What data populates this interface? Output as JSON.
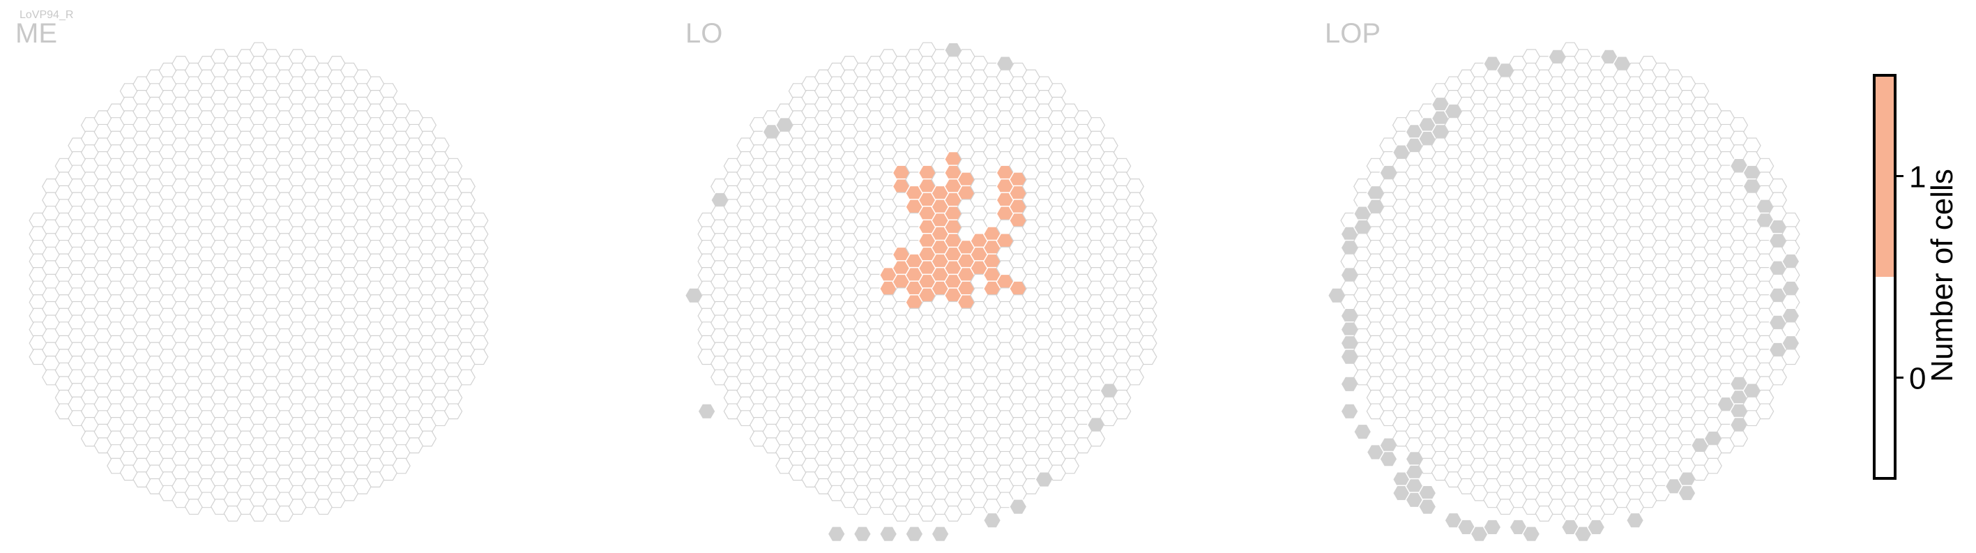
{
  "figure": {
    "cell_type_label": "LoVP94_R"
  },
  "chart_data": {
    "type": "heatmap",
    "cell_type": "LoVP94_R",
    "panels": [
      {
        "name": "ME",
        "hex_columns": 35,
        "cells_with_count": [],
        "cells_outside_neuropil": []
      },
      {
        "name": "LO",
        "hex_columns": 35,
        "cells_with_count": [
          {
            "col": 15,
            "row": 17
          },
          {
            "col": 15,
            "row": 16
          },
          {
            "col": 16,
            "row": 17
          },
          {
            "col": 16,
            "row": 16
          },
          {
            "col": 16,
            "row": 15
          },
          {
            "col": 16,
            "row": 10
          },
          {
            "col": 16,
            "row": 9
          },
          {
            "col": 17,
            "row": 18
          },
          {
            "col": 17,
            "row": 17
          },
          {
            "col": 17,
            "row": 16
          },
          {
            "col": 17,
            "row": 15
          },
          {
            "col": 17,
            "row": 11
          },
          {
            "col": 17,
            "row": 10
          },
          {
            "col": 18,
            "row": 18
          },
          {
            "col": 18,
            "row": 17
          },
          {
            "col": 18,
            "row": 16
          },
          {
            "col": 18,
            "row": 15
          },
          {
            "col": 18,
            "row": 14
          },
          {
            "col": 18,
            "row": 13
          },
          {
            "col": 18,
            "row": 12
          },
          {
            "col": 18,
            "row": 11
          },
          {
            "col": 18,
            "row": 10
          },
          {
            "col": 18,
            "row": 9
          },
          {
            "col": 19,
            "row": 17
          },
          {
            "col": 19,
            "row": 16
          },
          {
            "col": 19,
            "row": 15
          },
          {
            "col": 19,
            "row": 14
          },
          {
            "col": 19,
            "row": 13
          },
          {
            "col": 19,
            "row": 12
          },
          {
            "col": 19,
            "row": 11
          },
          {
            "col": 19,
            "row": 10
          },
          {
            "col": 20,
            "row": 18
          },
          {
            "col": 20,
            "row": 17
          },
          {
            "col": 20,
            "row": 16
          },
          {
            "col": 20,
            "row": 15
          },
          {
            "col": 20,
            "row": 14
          },
          {
            "col": 20,
            "row": 13
          },
          {
            "col": 20,
            "row": 12
          },
          {
            "col": 20,
            "row": 11
          },
          {
            "col": 20,
            "row": 10
          },
          {
            "col": 20,
            "row": 9
          },
          {
            "col": 20,
            "row": 8
          },
          {
            "col": 21,
            "row": 18
          },
          {
            "col": 21,
            "row": 17
          },
          {
            "col": 21,
            "row": 16
          },
          {
            "col": 21,
            "row": 15
          },
          {
            "col": 21,
            "row": 14
          },
          {
            "col": 21,
            "row": 10
          },
          {
            "col": 21,
            "row": 9
          },
          {
            "col": 22,
            "row": 16
          },
          {
            "col": 22,
            "row": 15
          },
          {
            "col": 22,
            "row": 14
          },
          {
            "col": 23,
            "row": 17
          },
          {
            "col": 23,
            "row": 16
          },
          {
            "col": 23,
            "row": 15
          },
          {
            "col": 23,
            "row": 14
          },
          {
            "col": 23,
            "row": 13
          },
          {
            "col": 24,
            "row": 17
          },
          {
            "col": 24,
            "row": 14
          },
          {
            "col": 24,
            "row": 12
          },
          {
            "col": 24,
            "row": 11
          },
          {
            "col": 24,
            "row": 10
          },
          {
            "col": 24,
            "row": 9
          },
          {
            "col": 25,
            "row": 17
          },
          {
            "col": 25,
            "row": 12
          },
          {
            "col": 25,
            "row": 11
          },
          {
            "col": 25,
            "row": 10
          },
          {
            "col": 25,
            "row": 9
          }
        ],
        "cells_outside_neuropil": [
          {
            "col": 0,
            "row": 18
          },
          {
            "col": 1,
            "row": 26
          },
          {
            "col": 2,
            "row": 11
          },
          {
            "col": 6,
            "row": 6
          },
          {
            "col": 7,
            "row": 5
          },
          {
            "col": 11,
            "row": 35
          },
          {
            "col": 13,
            "row": 35
          },
          {
            "col": 15,
            "row": 35
          },
          {
            "col": 17,
            "row": 35
          },
          {
            "col": 19,
            "row": 35
          },
          {
            "col": 20,
            "row": 0
          },
          {
            "col": 23,
            "row": 34
          },
          {
            "col": 24,
            "row": 1
          },
          {
            "col": 25,
            "row": 33
          },
          {
            "col": 27,
            "row": 31
          },
          {
            "col": 31,
            "row": 27
          },
          {
            "col": 32,
            "row": 25
          }
        ]
      },
      {
        "name": "LOP",
        "hex_columns": 35,
        "cells_with_count": [],
        "cells_outside_neuropil": [
          {
            "col": 0,
            "row": 18
          },
          {
            "col": 1,
            "row": 13
          },
          {
            "col": 1,
            "row": 14
          },
          {
            "col": 1,
            "row": 16
          },
          {
            "col": 1,
            "row": 19
          },
          {
            "col": 1,
            "row": 20
          },
          {
            "col": 1,
            "row": 21
          },
          {
            "col": 1,
            "row": 22
          },
          {
            "col": 1,
            "row": 24
          },
          {
            "col": 1,
            "row": 26
          },
          {
            "col": 2,
            "row": 12
          },
          {
            "col": 2,
            "row": 13
          },
          {
            "col": 2,
            "row": 28
          },
          {
            "col": 3,
            "row": 10
          },
          {
            "col": 3,
            "row": 11
          },
          {
            "col": 3,
            "row": 29
          },
          {
            "col": 4,
            "row": 9
          },
          {
            "col": 4,
            "row": 29
          },
          {
            "col": 4,
            "row": 30
          },
          {
            "col": 5,
            "row": 7
          },
          {
            "col": 5,
            "row": 31
          },
          {
            "col": 5,
            "row": 32
          },
          {
            "col": 6,
            "row": 6
          },
          {
            "col": 6,
            "row": 7
          },
          {
            "col": 6,
            "row": 30
          },
          {
            "col": 6,
            "row": 31
          },
          {
            "col": 6,
            "row": 32
          },
          {
            "col": 6,
            "row": 33
          },
          {
            "col": 7,
            "row": 5
          },
          {
            "col": 7,
            "row": 6
          },
          {
            "col": 7,
            "row": 32
          },
          {
            "col": 7,
            "row": 33
          },
          {
            "col": 8,
            "row": 4
          },
          {
            "col": 8,
            "row": 5
          },
          {
            "col": 8,
            "row": 6
          },
          {
            "col": 9,
            "row": 4
          },
          {
            "col": 9,
            "row": 34
          },
          {
            "col": 10,
            "row": 35
          },
          {
            "col": 11,
            "row": 35
          },
          {
            "col": 12,
            "row": 1
          },
          {
            "col": 12,
            "row": 35
          },
          {
            "col": 13,
            "row": 1
          },
          {
            "col": 14,
            "row": 35
          },
          {
            "col": 15,
            "row": 35
          },
          {
            "col": 17,
            "row": 0
          },
          {
            "col": 18,
            "row": 35
          },
          {
            "col": 19,
            "row": 35
          },
          {
            "col": 20,
            "row": 35
          },
          {
            "col": 21,
            "row": 0
          },
          {
            "col": 22,
            "row": 1
          },
          {
            "col": 23,
            "row": 34
          },
          {
            "col": 26,
            "row": 32
          },
          {
            "col": 27,
            "row": 31
          },
          {
            "col": 27,
            "row": 32
          },
          {
            "col": 28,
            "row": 29
          },
          {
            "col": 29,
            "row": 28
          },
          {
            "col": 30,
            "row": 26
          },
          {
            "col": 31,
            "row": 24
          },
          {
            "col": 31,
            "row": 25
          },
          {
            "col": 31,
            "row": 26
          },
          {
            "col": 31,
            "row": 27
          },
          {
            "col": 32,
            "row": 25
          },
          {
            "col": 31,
            "row": 8
          },
          {
            "col": 32,
            "row": 9
          },
          {
            "col": 32,
            "row": 10
          },
          {
            "col": 33,
            "row": 11
          },
          {
            "col": 33,
            "row": 12
          },
          {
            "col": 34,
            "row": 13
          },
          {
            "col": 34,
            "row": 14
          },
          {
            "col": 35,
            "row": 15
          },
          {
            "col": 34,
            "row": 16
          },
          {
            "col": 35,
            "row": 17
          },
          {
            "col": 34,
            "row": 18
          },
          {
            "col": 35,
            "row": 19
          },
          {
            "col": 34,
            "row": 20
          },
          {
            "col": 35,
            "row": 21
          },
          {
            "col": 34,
            "row": 22
          }
        ]
      }
    ],
    "colorbar": {
      "label": "Number of cells",
      "ticks": [
        0,
        1
      ],
      "vmin": -0.5,
      "vmax": 1.5,
      "bins": [
        {
          "range": [
            -0.5,
            0.5
          ],
          "color": "#ffffff"
        },
        {
          "range": [
            0.5,
            1.5
          ],
          "color": "#f8b293"
        }
      ]
    },
    "colors": {
      "empty": "#ffffff",
      "empty_stroke": "#d2d2d2",
      "count_1": "#f8b293",
      "outside_neuropil": "#d0d0d0"
    }
  }
}
